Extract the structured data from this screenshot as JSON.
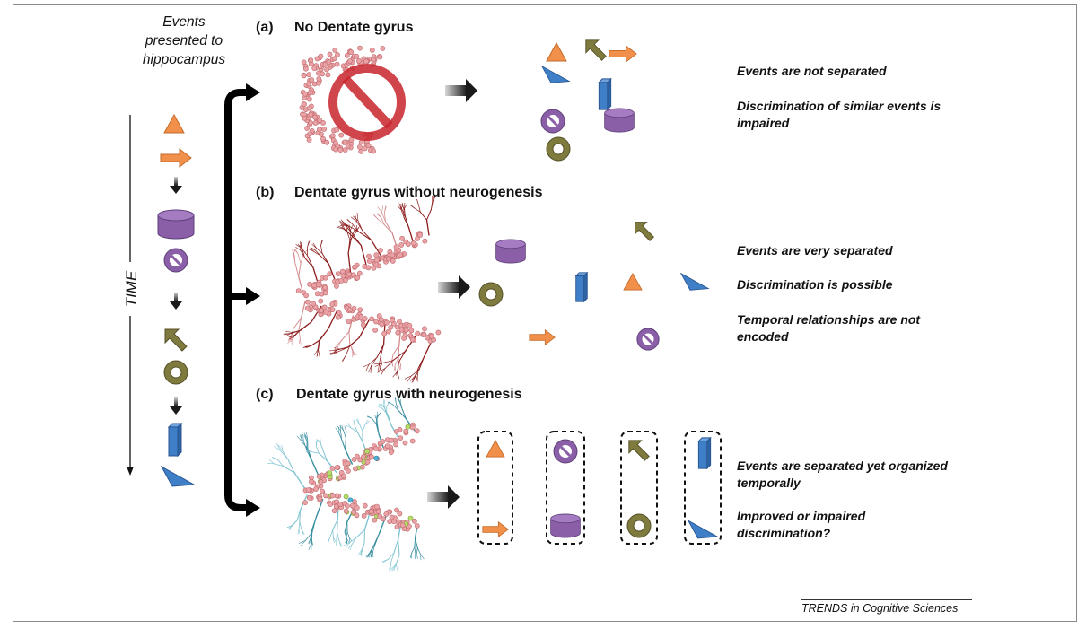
{
  "left": {
    "title_lines": [
      "Events",
      "presented to",
      "hippocampus"
    ],
    "time_label": "TIME"
  },
  "panels": [
    {
      "letter": "(a)",
      "title": "No Dentate gyrus",
      "notes": [
        "Events are not separated",
        "Discrimination of similar events is",
        "impaired"
      ]
    },
    {
      "letter": "(b)",
      "title": "Dentate gyrus without neurogenesis",
      "notes": [
        "Events are very separated",
        "Discrimination is possible",
        "Temporal relationships are not",
        "encoded"
      ],
      "emphasis_word": "possible"
    },
    {
      "letter": "(c)",
      "title": "Dentate gyrus with neurogenesis",
      "notes": [
        "Events are separated yet organized",
        "temporally",
        "Improved or impaired",
        "discrimination?"
      ]
    }
  ],
  "footer": "TRENDS in Cognitive Sciences",
  "colors": {
    "orange": "#f0904a",
    "purple": "#8a5fa8",
    "olive": "#7f7a3e",
    "blue": "#3f7fc8",
    "neuron_red": "#e9a3a6",
    "dendrite_dark": "#8b1a1a",
    "dendrite_teal": "#3a8fa0",
    "ban_red": "#c8252b"
  },
  "event_sequence": [
    "triangle-icon",
    "arrow-icon",
    "cylinder-icon",
    "ban-token-icon",
    "olive-arrow-icon",
    "ring-icon",
    "prism-icon",
    "wedge-icon"
  ]
}
